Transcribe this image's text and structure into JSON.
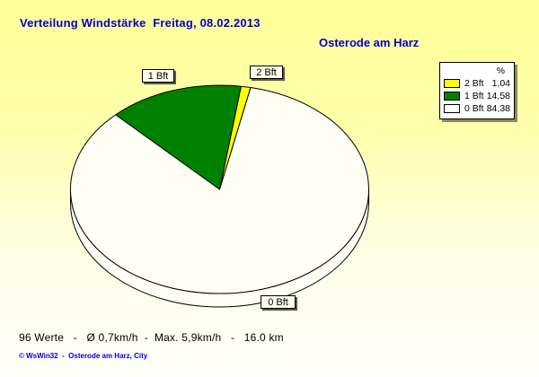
{
  "header": {
    "title": "Verteilung Windstärke  Freitag, 08.02.2013",
    "station": "Osterode am Harz"
  },
  "chart_data": {
    "type": "pie",
    "style": "3d-pie",
    "title": "Verteilung Windstärke Freitag, 08.02.2013",
    "station": "Osterode am Harz",
    "unit": "%",
    "legend_header": "%",
    "legend_position": "top-right",
    "start_angle_deg": 78,
    "direction": "counterclockwise",
    "slices": [
      {
        "label": "2 Bft",
        "value": 1.04,
        "value_text": "1,04",
        "color": "#ffff00"
      },
      {
        "label": "1 Bft",
        "value": 14.58,
        "value_text": "14,58",
        "color": "#008000"
      },
      {
        "label": "0 Bft",
        "value": 84.38,
        "value_text": "84,38",
        "color": "#fffef4"
      }
    ]
  },
  "footer": {
    "stats": "96 Werte   -   Ø 0,7km/h  -  Max. 5,9km/h   -   16.0 km",
    "credit": "© WsWin32  -  Osterode am Harz, City"
  },
  "colors": {
    "title_text": "#0000cc",
    "outline": "#000000",
    "background_top": "#ffff99",
    "background_bottom": "#fffff8"
  }
}
